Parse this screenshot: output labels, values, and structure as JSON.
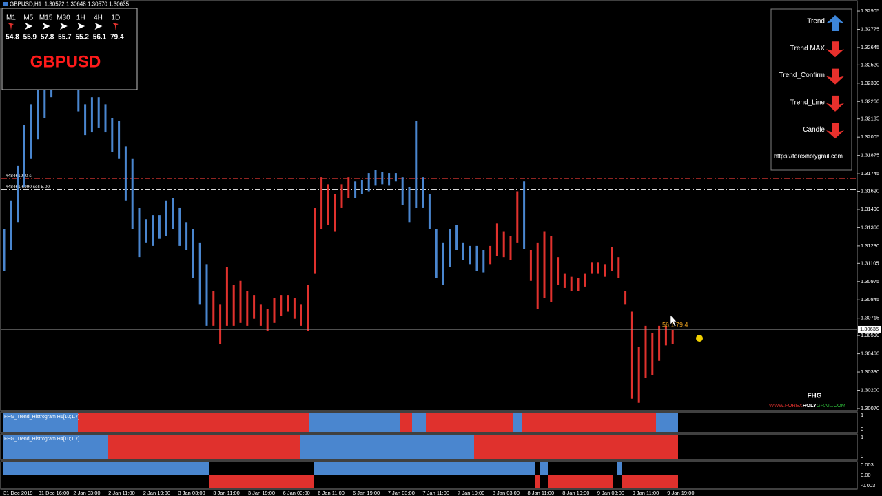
{
  "window_title": "GBPUSD,H1  1.30572 1.30648 1.30570 1.30635",
  "timeframes": [
    {
      "label": "M1",
      "trend": "down",
      "strength": "54.8"
    },
    {
      "label": "M5",
      "trend": "flat",
      "strength": "55.9"
    },
    {
      "label": "M15",
      "trend": "flat",
      "strength": "57.8"
    },
    {
      "label": "M30",
      "trend": "flat",
      "strength": "55.7"
    },
    {
      "label": "1H",
      "trend": "flat",
      "strength": "55.2"
    },
    {
      "label": "4H",
      "trend": "flat",
      "strength": "56.1"
    },
    {
      "label": "1D",
      "trend": "down",
      "strength": "79.4"
    }
  ],
  "symbol": "GBPUSD",
  "signals": [
    {
      "label": "Trend",
      "direction": "up"
    },
    {
      "label": "Trend MAX",
      "direction": "down"
    },
    {
      "label": "Trend_Confirm",
      "direction": "down"
    },
    {
      "label": "Trend_Line",
      "direction": "down"
    },
    {
      "label": "Candle",
      "direction": "down"
    }
  ],
  "signals_url": "https://forexholygrail.com",
  "logo": {
    "mark": "FHG",
    "site_prefix": "WWW.FOREX",
    "site_bold": "HOLY",
    "site_suffix": "GRAIL.COM"
  },
  "tooltip": "56.1 79.4",
  "chart_data": {
    "type": "bars",
    "up_color": "#4a86cf",
    "down_color": "#e0312d",
    "ylim": [
      1.30055,
      1.32974
    ],
    "yticks": [
      1.32905,
      1.32775,
      1.32645,
      {
        "value": 1.3252,
        "label": "1.32520"
      },
      {
        "value": 1.3239,
        "label": "1.32390"
      },
      {
        "value": 1.3226,
        "label": "1.32260"
      },
      1.32135,
      1.32005,
      1.31875,
      1.31745,
      {
        "value": 1.3162,
        "label": "1.31620"
      },
      {
        "value": 1.3149,
        "label": "1.31490"
      },
      {
        "value": 1.3136,
        "label": "1.31360"
      },
      {
        "value": 1.3123,
        "label": "1.31230"
      },
      1.31105,
      1.30975,
      1.30845,
      1.30715,
      {
        "value": 1.3059,
        "label": "1.30590"
      },
      {
        "value": 1.3046,
        "label": "1.30460"
      },
      {
        "value": 1.3033,
        "label": "1.30330"
      },
      {
        "value": 1.302,
        "label": "1.30200"
      },
      {
        "value": 1.3007,
        "label": "1.30070"
      }
    ],
    "current_price": 1.30635,
    "levels": [
      {
        "value": 1.3171,
        "label": "#48461990 sl",
        "color": "#c0302c"
      },
      {
        "value": 1.3163,
        "label": "#48461 6990 sell 5.00",
        "color": "#d8d8d8"
      }
    ],
    "x_labels": [
      "31 Dec 2019",
      "31 Dec 16:00",
      "2 Jan 03:00",
      "2 Jan 11:00",
      "2 Jan 19:00",
      "3 Jan 03:00",
      "3 Jan 11:00",
      "3 Jan 19:00",
      "6 Jan 03:00",
      "6 Jan 11:00",
      "6 Jan 19:00",
      "7 Jan 03:00",
      "7 Jan 11:00",
      "7 Jan 19:00",
      "8 Jan 03:00",
      "8 Jan 11:00",
      "8 Jan 19:00",
      "9 Jan 03:00",
      "9 Jan 11:00",
      "9 Jan 19:00"
    ],
    "high": [
      1.3135,
      1.3155,
      1.318,
      1.3209,
      1.3224,
      1.3234,
      1.3244,
      1.3254,
      1.3259,
      1.3259,
      1.3254,
      1.3249,
      1.3224,
      1.3229,
      1.3229,
      1.3224,
      1.3214,
      1.3212,
      1.3194,
      1.3185,
      1.315,
      1.3142,
      1.3145,
      1.3145,
      1.3155,
      1.3157,
      1.315,
      1.314,
      1.3135,
      1.3125,
      1.311,
      1.3091,
      1.3081,
      1.3108,
      1.3095,
      1.3098,
      1.3091,
      1.3088,
      1.3081,
      1.3078,
      1.3086,
      1.3088,
      1.3088,
      1.3086,
      1.3081,
      1.3095,
      1.315,
      1.3172,
      1.3167,
      1.316,
      1.3167,
      1.3172,
      1.3169,
      1.317,
      1.3175,
      1.3177,
      1.3176,
      1.3175,
      1.3175,
      1.3172,
      1.3165,
      1.3212,
      1.3172,
      1.316,
      1.3135,
      1.3125,
      1.3135,
      1.3138,
      1.3125,
      1.3123,
      1.3123,
      1.312,
      1.3123,
      1.3139,
      1.3133,
      1.313,
      1.3162,
      1.3169,
      1.312,
      1.3125,
      1.3133,
      1.313,
      1.3115,
      1.3103,
      1.3101,
      1.31,
      1.3103,
      1.3111,
      1.3111,
      1.311,
      1.3122,
      1.3115,
      1.3091,
      1.3076,
      1.3051,
      1.3066,
      1.3061,
      1.3066,
      1.3066,
      1.3063
    ],
    "low": [
      1.3105,
      1.312,
      1.314,
      1.3165,
      1.3185,
      1.3199,
      1.3214,
      1.3229,
      1.3237,
      1.3239,
      1.3237,
      1.3219,
      1.3202,
      1.3204,
      1.3207,
      1.3204,
      1.319,
      1.3185,
      1.3155,
      1.3135,
      1.3115,
      1.3125,
      1.3123,
      1.3128,
      1.313,
      1.3135,
      1.3123,
      1.312,
      1.31,
      1.3081,
      1.3066,
      1.3066,
      1.3053,
      1.3066,
      1.3066,
      1.3068,
      1.3066,
      1.3071,
      1.3066,
      1.3062,
      1.3068,
      1.3073,
      1.3076,
      1.3071,
      1.3066,
      1.3062,
      1.3103,
      1.3135,
      1.3138,
      1.3133,
      1.315,
      1.3157,
      1.3157,
      1.316,
      1.3162,
      1.3166,
      1.3167,
      1.3166,
      1.3169,
      1.3152,
      1.314,
      1.315,
      1.315,
      1.3135,
      1.31,
      1.3095,
      1.3108,
      1.312,
      1.3113,
      1.311,
      1.3105,
      1.3104,
      1.311,
      1.3116,
      1.3115,
      1.3113,
      1.3125,
      1.3121,
      1.3098,
      1.3078,
      1.3086,
      1.3083,
      1.3095,
      1.3093,
      1.3091,
      1.3091,
      1.3094,
      1.3103,
      1.3103,
      1.3101,
      1.3105,
      1.31,
      1.3081,
      1.3014,
      1.3011,
      1.3029,
      1.3031,
      1.3041,
      1.3052,
      1.3053
    ],
    "bullish": [
      true,
      true,
      true,
      true,
      true,
      true,
      true,
      true,
      true,
      true,
      true,
      true,
      true,
      true,
      true,
      true,
      true,
      true,
      true,
      true,
      true,
      true,
      true,
      true,
      true,
      true,
      true,
      true,
      true,
      true,
      true,
      false,
      false,
      false,
      false,
      false,
      false,
      false,
      false,
      false,
      false,
      false,
      false,
      false,
      false,
      false,
      false,
      false,
      false,
      false,
      false,
      false,
      true,
      true,
      true,
      true,
      true,
      true,
      true,
      true,
      true,
      true,
      true,
      true,
      true,
      true,
      true,
      true,
      true,
      true,
      true,
      true,
      false,
      false,
      false,
      false,
      false,
      true,
      false,
      false,
      false,
      false,
      false,
      false,
      false,
      false,
      false,
      false,
      false,
      false,
      false,
      false,
      false,
      false,
      false,
      false,
      false,
      false,
      false,
      false
    ]
  },
  "indicators": [
    {
      "label": "FHG_Trend_Histrogram H1[10;1.7]",
      "scale": [
        "1",
        "0"
      ]
    },
    {
      "label": "FHG_Trend_Histrogram H4[10;1.7]",
      "scale": [
        "1",
        "0"
      ]
    },
    {
      "scale": [
        "0.003",
        "0.00",
        "-0.003"
      ]
    }
  ]
}
